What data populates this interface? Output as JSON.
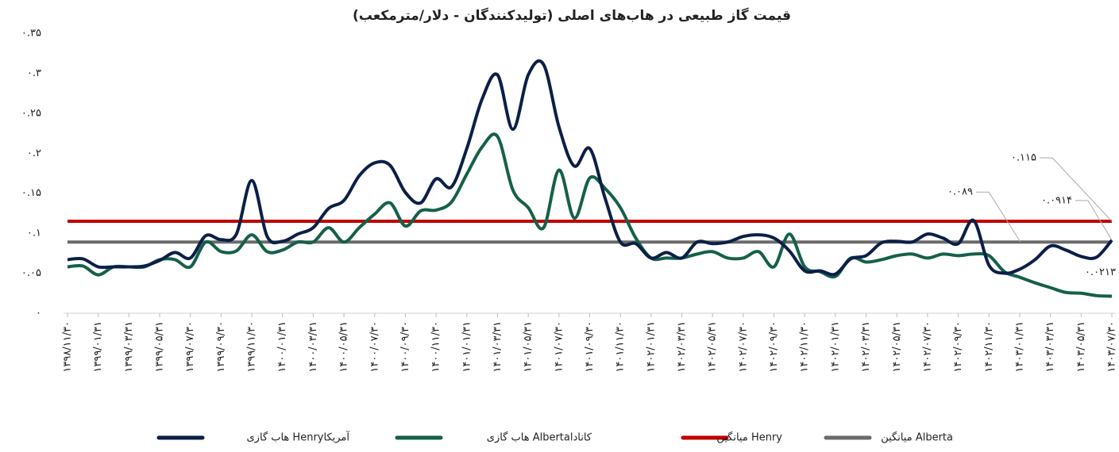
{
  "chart_data": {
    "type": "line",
    "title": "قیمت گاز طبیعی در هاب‌های اصلی (تولیدکنندگان - دلار/مترمکعب)",
    "categories": [
      "۱۳۹۸/۱۱/۳۰",
      null,
      "۱۳۹۹/۰۱/۳۱",
      null,
      "۱۳۹۹/۰۳/۳۱",
      null,
      "۱۳۹۹/۰۵/۳۱",
      null,
      "۱۳۹۹/۰۷/۳۰",
      null,
      "۱۳۹۹/۰۹/۳۰",
      null,
      "۱۳۹۹/۱۱/۳۰",
      null,
      "۱۴۰۰/۰۱/۳۱",
      null,
      "۱۴۰۰/۰۳/۳۱",
      null,
      "۱۴۰۰/۰۵/۳۱",
      null,
      "۱۴۰۰/۰۷/۳۰",
      null,
      "۱۴۰۰/۰۹/۳۰",
      null,
      "۱۴۰۰/۱۱/۳۰",
      null,
      "۱۴۰۱/۰۱/۳۱",
      null,
      "۱۴۰۱/۰۳/۳۱",
      null,
      "۱۴۰۱/۰۵/۳۱",
      null,
      "۱۴۰۱/۰۷/۳۰",
      null,
      "۱۴۰۱/۰۹/۳۰",
      null,
      "۱۴۰۱/۱۱/۳۰",
      null,
      "۱۴۰۲/۰۱/۳۱",
      null,
      "۱۴۰۲/۰۳/۳۱",
      null,
      "۱۴۰۲/۰۵/۳۱",
      null,
      "۱۴۰۲/۰۷/۳۰",
      null,
      "۱۴۰۲/۰۹/۳۰",
      null,
      "۱۴۰۲/۱۱/۳۰",
      null,
      "۱۴۰۲/۰۱/۳۱",
      null,
      "۱۴۰۲/۰۳/۳۱",
      null,
      "۱۴۰۲/۰۵/۳۱",
      null,
      "۱۴۰۲/۰۷/۳۰",
      null,
      "۱۴۰۲/۰۹/۳۰",
      null,
      "۱۴۰۲/۱۱/۳۰",
      null,
      "۱۴۰۳/۰۱/۳۱",
      null,
      "۱۴۰۳/۰۳/۳۱",
      null,
      "۱۴۰۳/۰۵/۳۱",
      null,
      "۱۴۰۳/۰۷/۳۰"
    ],
    "series": [
      {
        "name": "هاب گازی Henryآمریکا",
        "color": "#0b1f47",
        "values": [
          0.067,
          0.068,
          0.058,
          0.058,
          0.058,
          0.059,
          0.066,
          0.076,
          0.069,
          0.097,
          0.092,
          0.099,
          0.166,
          0.096,
          0.09,
          0.099,
          0.107,
          0.131,
          0.141,
          0.172,
          0.188,
          0.185,
          0.151,
          0.138,
          0.168,
          0.158,
          0.206,
          0.268,
          0.298,
          0.23,
          0.298,
          0.311,
          0.233,
          0.184,
          0.206,
          0.144,
          0.089,
          0.087,
          0.069,
          0.076,
          0.069,
          0.089,
          0.087,
          0.089,
          0.096,
          0.098,
          0.094,
          0.078,
          0.053,
          0.053,
          0.049,
          0.068,
          0.072,
          0.088,
          0.09,
          0.089,
          0.099,
          0.094,
          0.087,
          0.116,
          0.06,
          0.05,
          0.055,
          0.067,
          0.084,
          0.079,
          0.071,
          0.07,
          0.0914
        ],
        "value_labels": [
          null,
          null,
          null,
          null,
          null,
          null,
          null,
          null,
          null,
          null,
          null,
          null,
          null,
          null,
          null,
          null,
          null,
          null,
          null,
          null,
          null,
          null,
          null,
          null,
          null,
          null,
          null,
          null,
          null,
          null,
          null,
          null,
          null,
          null,
          null,
          null,
          null,
          null,
          null,
          null,
          null,
          null,
          null,
          null,
          null,
          null,
          null,
          null,
          null,
          null,
          null,
          null,
          null,
          null,
          null,
          null,
          null,
          null,
          null,
          null,
          null,
          null,
          null,
          null,
          null,
          null,
          null,
          null,
          "۰.۰۹۱۴"
        ]
      },
      {
        "name": "هاب گازی Albertaکانادا",
        "color": "#15604a",
        "values": [
          0.058,
          0.059,
          0.048,
          0.058,
          0.058,
          0.058,
          0.067,
          0.067,
          0.058,
          0.089,
          0.077,
          0.078,
          0.098,
          0.077,
          0.079,
          0.089,
          0.089,
          0.107,
          0.089,
          0.107,
          0.124,
          0.138,
          0.109,
          0.128,
          0.129,
          0.139,
          0.174,
          0.208,
          0.221,
          0.154,
          0.132,
          0.107,
          0.179,
          0.119,
          0.169,
          0.156,
          0.132,
          0.094,
          0.069,
          0.069,
          0.069,
          0.074,
          0.077,
          0.069,
          0.069,
          0.077,
          0.058,
          0.099,
          0.058,
          0.052,
          0.046,
          0.069,
          0.064,
          0.067,
          0.072,
          0.074,
          0.069,
          0.074,
          0.072,
          0.074,
          0.072,
          0.052,
          0.045,
          0.038,
          0.032,
          0.026,
          0.025,
          0.022,
          0.0213
        ],
        "value_labels": [
          null,
          null,
          null,
          null,
          null,
          null,
          null,
          null,
          null,
          null,
          null,
          null,
          null,
          null,
          null,
          null,
          null,
          null,
          null,
          null,
          null,
          null,
          null,
          null,
          null,
          null,
          null,
          null,
          null,
          null,
          null,
          null,
          null,
          null,
          null,
          null,
          null,
          null,
          null,
          null,
          null,
          null,
          null,
          null,
          null,
          null,
          null,
          null,
          null,
          null,
          null,
          null,
          null,
          null,
          null,
          null,
          null,
          null,
          null,
          null,
          null,
          null,
          null,
          null,
          null,
          null,
          null,
          null,
          "۰.۰۲۱۳"
        ]
      }
    ],
    "reference_lines": [
      {
        "name": "میانگین Henry",
        "color": "#c00000",
        "value": 0.115,
        "label": "۰.۱۱۵"
      },
      {
        "name": "میانگین Alberta",
        "color": "#6b6b6b",
        "value": 0.089,
        "label": "۰.۰۸۹"
      }
    ],
    "ylim": [
      0,
      0.35
    ],
    "yticks": [
      {
        "value": 0,
        "label": "۰"
      },
      {
        "value": 0.05,
        "label": "۰.۰۵"
      },
      {
        "value": 0.1,
        "label": "۰.۱"
      },
      {
        "value": 0.15,
        "label": "۰.۱۵"
      },
      {
        "value": 0.2,
        "label": "۰.۲"
      },
      {
        "value": 0.25,
        "label": "۰.۲۵"
      },
      {
        "value": 0.3,
        "label": "۰.۳"
      },
      {
        "value": 0.35,
        "label": "۰.۳۵"
      }
    ],
    "grid": false,
    "legend": "bottom"
  }
}
